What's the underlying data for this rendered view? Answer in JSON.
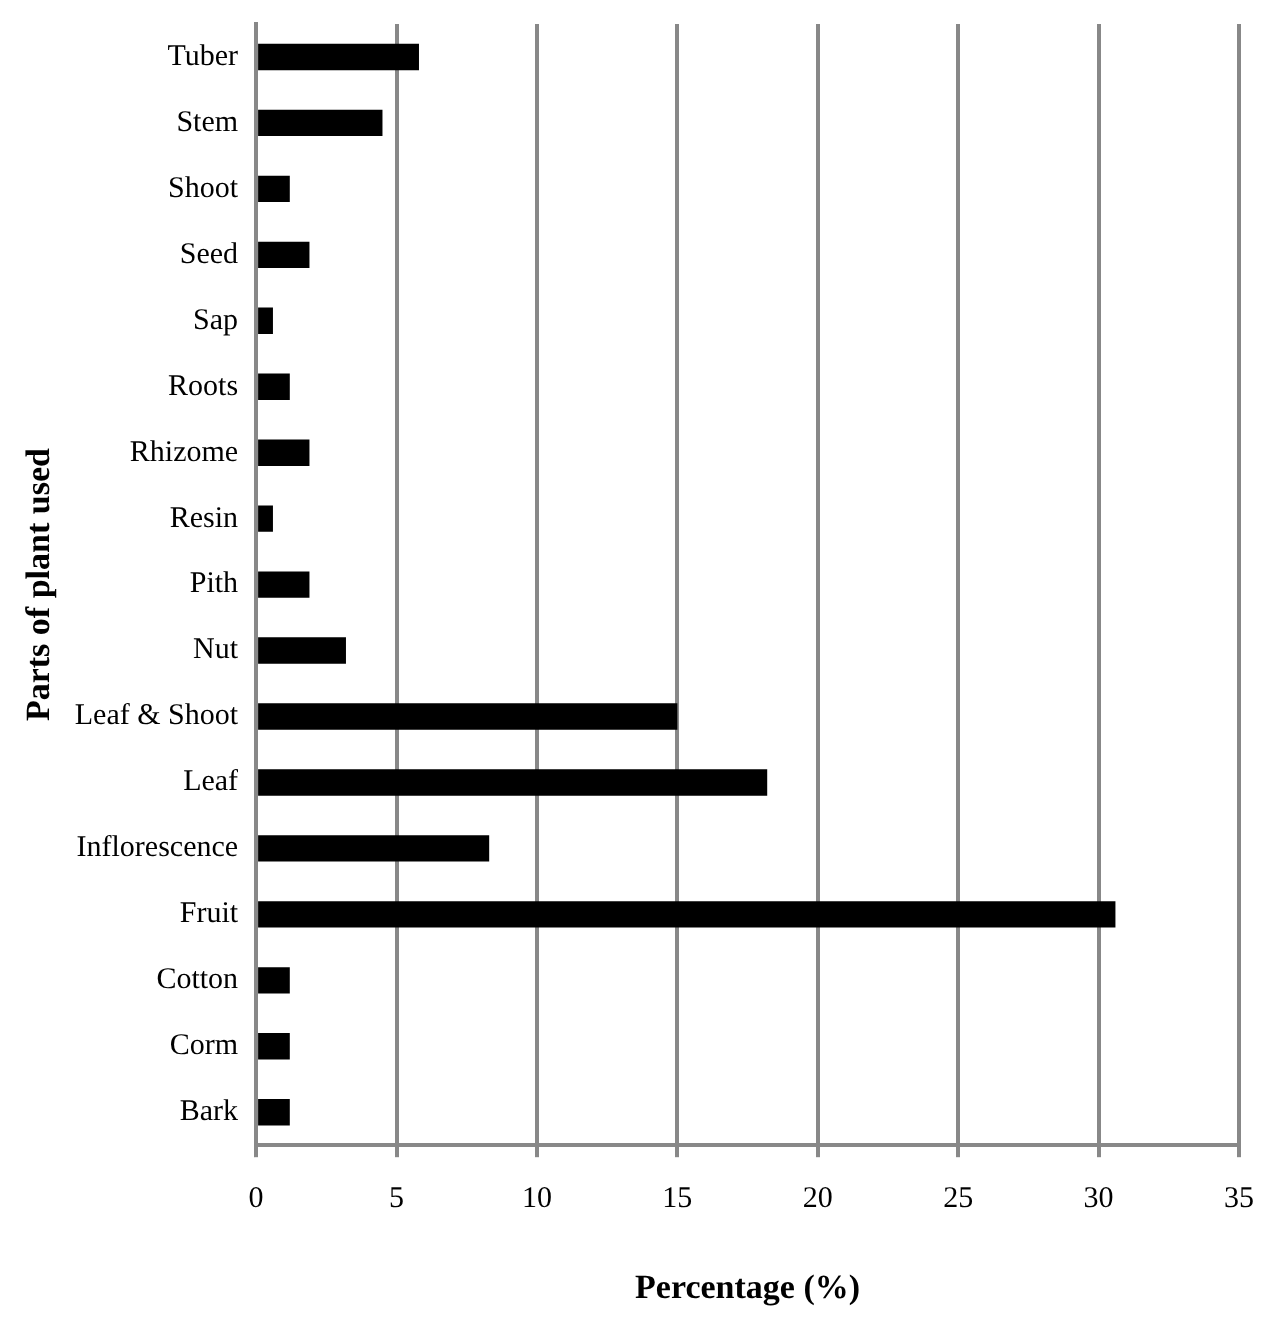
{
  "chart_data": {
    "type": "bar",
    "orientation": "horizontal",
    "xlabel": "Percentage (%)",
    "ylabel": "Parts of plant used",
    "categories": [
      "Tuber",
      "Stem",
      "Shoot",
      "Seed",
      "Sap",
      "Roots",
      "Rhizome",
      "Resin",
      "Pith",
      "Nut",
      "Leaf & Shoot",
      "Leaf",
      "Inflorescence",
      "Fruit",
      "Cotton",
      "Corm",
      "Bark"
    ],
    "values": [
      5.8,
      4.5,
      1.2,
      1.9,
      0.6,
      1.2,
      1.9,
      0.6,
      1.9,
      3.2,
      15.0,
      18.2,
      8.3,
      30.6,
      1.2,
      1.2,
      1.2
    ],
    "color": "#000000",
    "xlim": [
      0,
      35
    ],
    "xticks": [
      0,
      5,
      10,
      15,
      20,
      25,
      30,
      35
    ],
    "grid": "x",
    "legend": false
  }
}
